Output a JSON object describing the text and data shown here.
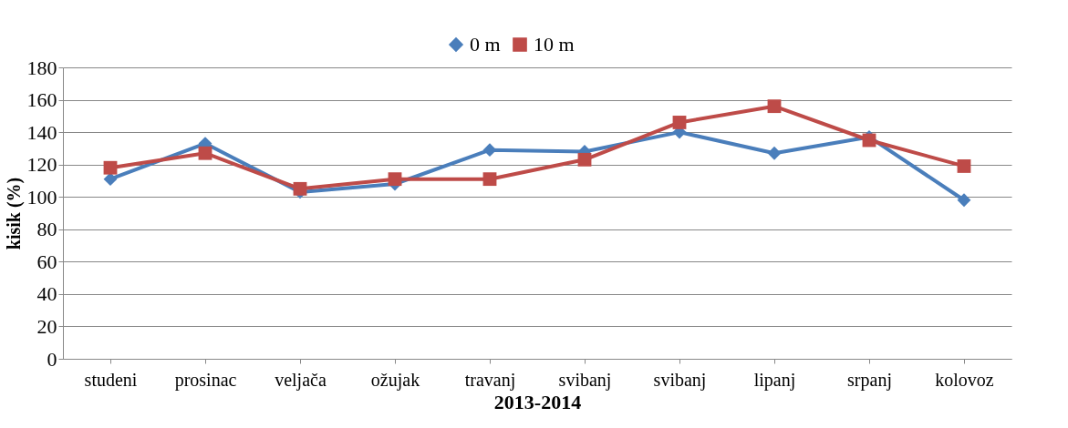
{
  "chart_data": {
    "type": "line",
    "xlabel": "2013-2014",
    "ylabel": "kisik (%)",
    "categories": [
      "studeni",
      "prosinac",
      "veljača",
      "ožujak",
      "travanj",
      "svibanj",
      "svibanj",
      "lipanj",
      "srpanj",
      "kolovoz"
    ],
    "series": [
      {
        "name": "0 m",
        "color": "#4a7ebb",
        "marker": "diamond",
        "values": [
          111,
          133,
          103,
          108,
          129,
          128,
          140,
          127,
          137,
          98
        ]
      },
      {
        "name": "10 m",
        "color": "#be4b48",
        "marker": "square",
        "values": [
          118,
          127,
          105,
          111,
          111,
          123,
          146,
          156,
          135,
          119
        ]
      }
    ],
    "ylim": [
      0,
      180
    ],
    "yticks": [
      0,
      20,
      40,
      60,
      80,
      100,
      120,
      140,
      160,
      180
    ],
    "grid": "y",
    "legend": "top",
    "line_style": "solid"
  }
}
